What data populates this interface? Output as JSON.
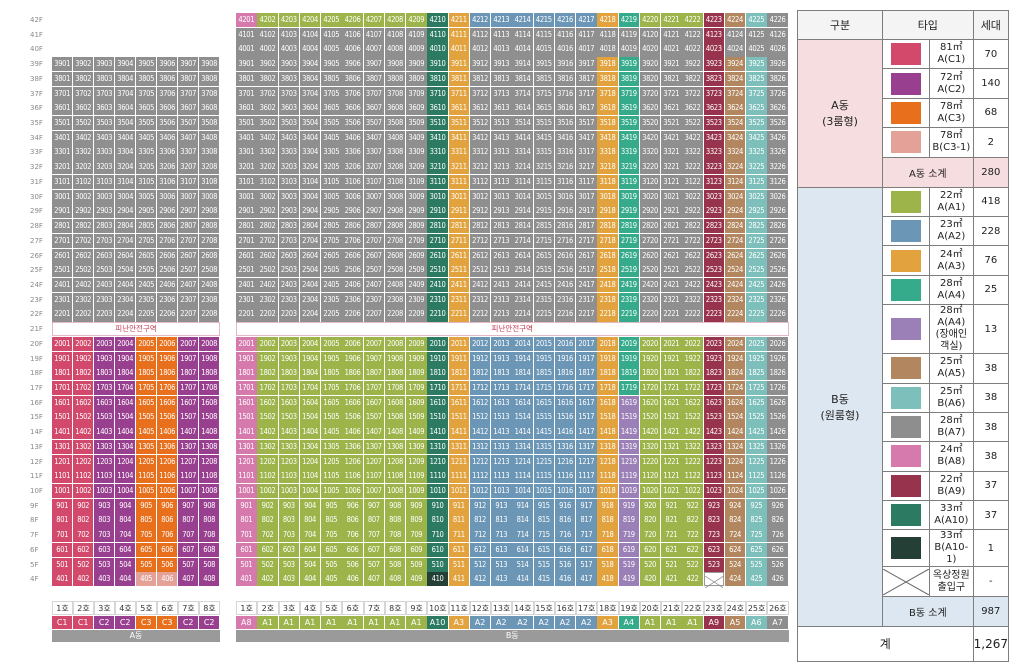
{
  "floors": [
    "42F",
    "41F",
    "40F",
    "39F",
    "38F",
    "37F",
    "36F",
    "35F",
    "34F",
    "33F",
    "32F",
    "31F",
    "30F",
    "29F",
    "28F",
    "27F",
    "26F",
    "25F",
    "24F",
    "23F",
    "22F",
    "21F",
    "20F",
    "19F",
    "18F",
    "17F",
    "16F",
    "15F",
    "14F",
    "13F",
    "12F",
    "11F",
    "10F",
    "9F",
    "8F",
    "7F",
    "6F",
    "5F",
    "4F"
  ],
  "refuge_label": "피난안전구역",
  "building_a": {
    "label": "A동",
    "units": [
      "1호",
      "2호",
      "3호",
      "4호",
      "5호",
      "6호",
      "7호",
      "8호"
    ],
    "types": [
      "C1",
      "C1",
      "C2",
      "C2",
      "C3",
      "C3",
      "C2",
      "C2"
    ],
    "top_floor": 39
  },
  "building_b": {
    "label": "B동",
    "units": [
      "1호",
      "2호",
      "3호",
      "4호",
      "5호",
      "6호",
      "7호",
      "8호",
      "9호",
      "10호",
      "11호",
      "12호",
      "13호",
      "14호",
      "15호",
      "16호",
      "17호",
      "18호",
      "19호",
      "20호",
      "21호",
      "22호",
      "23호",
      "24호",
      "25호",
      "26호"
    ],
    "types": [
      "A8",
      "A1",
      "A1",
      "A1",
      "A1",
      "A1",
      "A1",
      "A1",
      "A1",
      "A10",
      "A3",
      "A2",
      "A2",
      "A2",
      "A2",
      "A2",
      "A2",
      "A3",
      "A4",
      "A1",
      "A1",
      "A1",
      "A9",
      "A5",
      "A6",
      "A7"
    ],
    "top_floor": 42
  },
  "type_colors": {
    "C1": "#d3496c",
    "C2": "#983f8f",
    "C3": "#e86f1c",
    "C3-1": "#e3a197",
    "A1": "#9cb44a",
    "A2": "#6c96b6",
    "A3": "#e2a23d",
    "A4": "#35ab8c",
    "A4-2": "#9b80b8",
    "A5": "#b2875f",
    "A6": "#7dbfba",
    "A7": "#8e8e8e",
    "A8": "#d67aae",
    "A9": "#98334d",
    "A10": "#2d7a62",
    "A10-1": "#243f35",
    "grid": "#8f8f8f"
  },
  "legend": {
    "headers": [
      "구분",
      "타입",
      "세대"
    ],
    "group_a": {
      "name": "A동\n(3룸형)",
      "rows": [
        {
          "key": "C1",
          "type": "81㎡A(C1)",
          "count": "70"
        },
        {
          "key": "C2",
          "type": "72㎡A(C2)",
          "count": "140"
        },
        {
          "key": "C3",
          "type": "78㎡A(C3)",
          "count": "68"
        },
        {
          "key": "C3-1",
          "type": "78㎡B(C3-1)",
          "count": "2"
        }
      ],
      "subtotal_label": "A동 소계",
      "subtotal": "280"
    },
    "group_b": {
      "name": "B동\n(원룸형)",
      "rows": [
        {
          "key": "A1",
          "type": "22㎡A(A1)",
          "count": "418"
        },
        {
          "key": "A2",
          "type": "23㎡A(A2)",
          "count": "228"
        },
        {
          "key": "A3",
          "type": "24㎡A(A3)",
          "count": "76"
        },
        {
          "key": "A4",
          "type": "28㎡A(A4)",
          "count": "25"
        },
        {
          "key": "A4-2",
          "type": "28㎡A(A4)\n(장애인 객실)",
          "count": "13"
        },
        {
          "key": "A5",
          "type": "25㎡A(A5)",
          "count": "38"
        },
        {
          "key": "A6",
          "type": "25㎡B(A6)",
          "count": "38"
        },
        {
          "key": "A7",
          "type": "28㎡B(A7)",
          "count": "38"
        },
        {
          "key": "A8",
          "type": "24㎡B(A8)",
          "count": "38"
        },
        {
          "key": "A9",
          "type": "22㎡B(A9)",
          "count": "37"
        },
        {
          "key": "A10",
          "type": "33㎡A(A10)",
          "count": "37"
        },
        {
          "key": "A10-1",
          "type": "33㎡B(A10-1)",
          "count": "1"
        },
        {
          "key": "ENTRY",
          "type": "옥상정원 출입구",
          "count": "-"
        }
      ],
      "subtotal_label": "B동 소계",
      "subtotal": "987"
    },
    "total_label": "계",
    "total": "1,267"
  }
}
